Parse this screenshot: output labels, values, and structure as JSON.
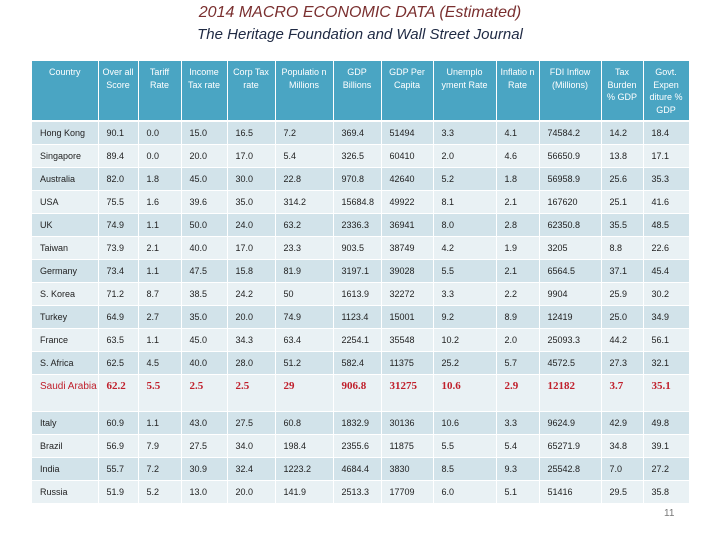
{
  "slide": {
    "title": "2014 MACRO ECONOMIC DATA (Estimated)",
    "subtitle": "The Heritage Foundation and Wall Street Journal",
    "page_number": "11"
  },
  "table": {
    "headers": [
      "Country",
      "Over all Score",
      "Tariff Rate",
      "Income Tax rate",
      "Corp Tax rate",
      "Populatio n Millions",
      "GDP Billions",
      "GDP Per Capita",
      "Unemplo yment Rate",
      "Inflatio n Rate",
      "FDI Inflow (Millions)",
      "Tax Burden % GDP",
      "Govt. Expen diture % GDP"
    ],
    "rows": [
      [
        "Hong Kong",
        "90.1",
        "0.0",
        "15.0",
        "16.5",
        "7.2",
        "369.4",
        "51494",
        "3.3",
        "4.1",
        "74584.2",
        "14.2",
        "18.4"
      ],
      [
        "Singapore",
        "89.4",
        "0.0",
        "20.0",
        "17.0",
        "5.4",
        "326.5",
        "60410",
        "2.0",
        "4.6",
        "56650.9",
        "13.8",
        "17.1"
      ],
      [
        "Australia",
        "82.0",
        "1.8",
        "45.0",
        "30.0",
        "22.8",
        "970.8",
        "42640",
        "5.2",
        "1.8",
        "56958.9",
        "25.6",
        "35.3"
      ],
      [
        "USA",
        "75.5",
        "1.6",
        "39.6",
        "35.0",
        "314.2",
        "15684.8",
        "49922",
        "8.1",
        "2.1",
        "167620",
        "25.1",
        "41.6"
      ],
      [
        "UK",
        "74.9",
        "1.1",
        "50.0",
        "24.0",
        "63.2",
        "2336.3",
        "36941",
        "8.0",
        "2.8",
        "62350.8",
        "35.5",
        "48.5"
      ],
      [
        "Taiwan",
        "73.9",
        "2.1",
        "40.0",
        "17.0",
        "23.3",
        "903.5",
        "38749",
        "4.2",
        "1.9",
        "3205",
        "8.8",
        "22.6"
      ],
      [
        "Germany",
        "73.4",
        "1.1",
        "47.5",
        "15.8",
        "81.9",
        "3197.1",
        "39028",
        "5.5",
        "2.1",
        "6564.5",
        "37.1",
        "45.4"
      ],
      [
        "S. Korea",
        "71.2",
        "8.7",
        "38.5",
        "24.2",
        "50",
        "1613.9",
        "32272",
        "3.3",
        "2.2",
        "9904",
        "25.9",
        "30.2"
      ],
      [
        "Turkey",
        "64.9",
        "2.7",
        "35.0",
        "20.0",
        "74.9",
        "1123.4",
        "15001",
        "9.2",
        "8.9",
        "12419",
        "25.0",
        "34.9"
      ],
      [
        "France",
        "63.5",
        "1.1",
        "45.0",
        "34.3",
        "63.4",
        "2254.1",
        "35548",
        "10.2",
        "2.0",
        "25093.3",
        "44.2",
        "56.1"
      ],
      [
        "S. Africa",
        "62.5",
        "4.5",
        "40.0",
        "28.0",
        "51.2",
        "582.4",
        "11375",
        "25.2",
        "5.7",
        "4572.5",
        "27.3",
        "32.1"
      ],
      [
        "Saudi Arabia",
        "62.2",
        "5.5",
        "2.5",
        "2.5",
        "29",
        "906.8",
        "31275",
        "10.6",
        "2.9",
        "12182",
        "3.7",
        "35.1"
      ],
      [
        "Italy",
        "60.9",
        "1.1",
        "43.0",
        "27.5",
        "60.8",
        "1832.9",
        "30136",
        "10.6",
        "3.3",
        "9624.9",
        "42.9",
        "49.8"
      ],
      [
        "Brazil",
        "56.9",
        "7.9",
        "27.5",
        "34.0",
        "198.4",
        "2355.6",
        "11875",
        "5.5",
        "5.4",
        "65271.9",
        "34.8",
        "39.1"
      ],
      [
        "India",
        "55.7",
        "7.2",
        "30.9",
        "32.4",
        "1223.2",
        "4684.4",
        "3830",
        "8.5",
        "9.3",
        "25542.8",
        "7.0",
        "27.2"
      ],
      [
        "Russia",
        "51.9",
        "5.2",
        "13.0",
        "20.0",
        "141.9",
        "2513.3",
        "17709",
        "6.0",
        "5.1",
        "51416",
        "29.5",
        "35.8"
      ]
    ],
    "highlighted_row": "Saudi Arabia"
  },
  "colors": {
    "header_bg": "#4aa5c3",
    "row_odd": "#d2e3ea",
    "row_even": "#e9f1f4",
    "highlight_text": "#c0202c",
    "title_color": "#7a2f2f",
    "subtitle_color": "#1f2a44"
  }
}
